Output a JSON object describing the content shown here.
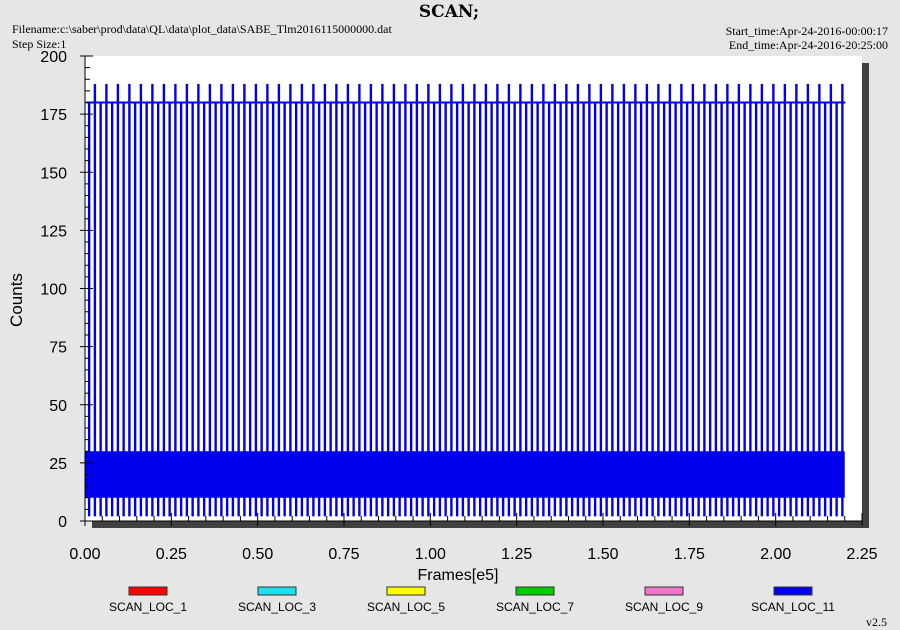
{
  "header": {
    "title": "SCAN;",
    "filename": "Filename:c:\\saber\\prod\\data\\QL\\data\\plot_data\\SABE_Tlm2016115000000.dat",
    "step_size": "Step Size:1",
    "start_time": "Start_time:Apr-24-2016-00:00:17",
    "end_time": "End_time:Apr-24-2016-20:25:00"
  },
  "version": "v2.5",
  "colors": {
    "background": "#e6e6e6",
    "plot_area": "#ffffff",
    "frame_shadow": "#404040",
    "blue": "#0000ee"
  },
  "chart_data": {
    "type": "line",
    "xlabel": "Frames[e5]",
    "ylabel": "Counts",
    "xlim": [
      0,
      2.25
    ],
    "ylim": [
      0,
      200
    ],
    "x_ticks": [
      "0.00",
      "0.25",
      "0.50",
      "0.75",
      "1.00",
      "1.25",
      "1.50",
      "1.75",
      "2.00",
      "2.25"
    ],
    "y_ticks": [
      "0",
      "25",
      "50",
      "75",
      "100",
      "125",
      "150",
      "175",
      "200"
    ],
    "grid": false,
    "legend_position": "bottom",
    "series": [
      {
        "name": "SCAN_LOC_1",
        "color": "#ff0000",
        "values": []
      },
      {
        "name": "SCAN_LOC_3",
        "color": "#22ddee",
        "values": []
      },
      {
        "name": "SCAN_LOC_5",
        "color": "#ffff00",
        "values": []
      },
      {
        "name": "SCAN_LOC_7",
        "color": "#00cc00",
        "values": []
      },
      {
        "name": "SCAN_LOC_9",
        "color": "#ee77cc",
        "values": []
      },
      {
        "name": "SCAN_LOC_11",
        "color": "#0000ee",
        "values": [],
        "x_end": 2.2,
        "baseline_band": [
          10,
          30
        ],
        "spike_level": 180,
        "spike_peak": 188,
        "spike_interval": 0.0333,
        "dip_level": 2
      }
    ]
  }
}
